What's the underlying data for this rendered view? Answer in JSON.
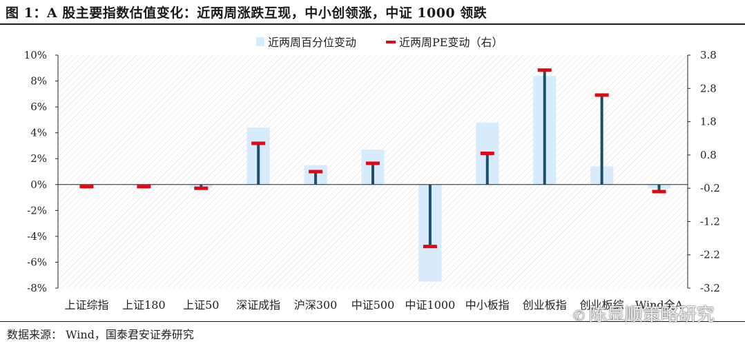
{
  "figure": {
    "title": "图 1：A 股主要指数估值变化：近两周涨跌互现，中小创领涨，中证 1000 领跌",
    "source": "数据来源：   Wind，国泰君安证券研究",
    "watermark": "陈显顺策略研究",
    "watermark_icon": "wechat-icon"
  },
  "chart_data": {
    "type": "bar",
    "categories": [
      "上证综指",
      "上证180",
      "上证50",
      "深证成指",
      "沪深300",
      "中证500",
      "中证1000",
      "中小板指",
      "创业板指",
      "创业板综",
      "Wind全A"
    ],
    "series": [
      {
        "name": "近两周百分位变动",
        "type": "bar",
        "axis": "left",
        "color": "#d6ebfb",
        "values": [
          -0.05,
          -0.1,
          -0.25,
          4.4,
          1.5,
          2.7,
          -7.5,
          4.8,
          8.4,
          1.4,
          -0.3
        ]
      },
      {
        "name": "近两周PE变动（右）",
        "type": "marker",
        "axis": "right",
        "color": "#e30613",
        "stem_color": "#1f4e6b",
        "values": [
          -0.15,
          -0.15,
          -0.2,
          1.15,
          0.3,
          0.55,
          -1.95,
          0.85,
          3.35,
          2.6,
          -0.3
        ]
      }
    ],
    "y_left": {
      "min": -8,
      "max": 10,
      "ticks": [
        -8,
        -6,
        -4,
        -2,
        0,
        2,
        4,
        6,
        8,
        10
      ],
      "tick_labels": [
        "-8%",
        "-6%",
        "-4%",
        "-2%",
        "0%",
        "2%",
        "4%",
        "6%",
        "8%",
        "10%"
      ]
    },
    "y_right": {
      "min": -3.2,
      "max": 3.8,
      "ticks": [
        -3.2,
        -2.2,
        -1.2,
        -0.2,
        0.8,
        1.8,
        2.8,
        3.8
      ],
      "tick_labels": [
        "-3.2",
        "-2.2",
        "-1.2",
        "-0.2",
        "0.8",
        "1.8",
        "2.8",
        "3.8"
      ]
    },
    "legend": {
      "position": "top",
      "labels": [
        "近两周百分位变动",
        "近两周PE变动（右）"
      ]
    },
    "grid": false,
    "background": "hatched"
  }
}
